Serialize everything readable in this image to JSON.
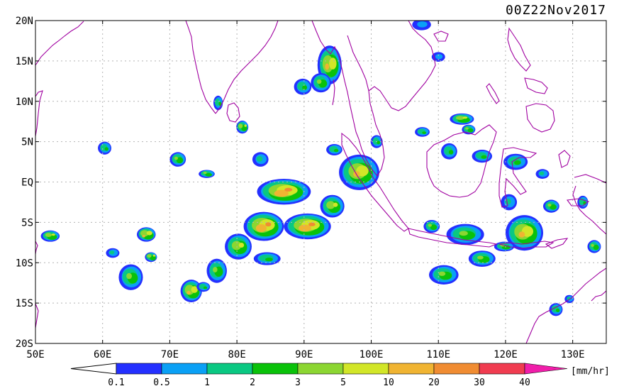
{
  "title": "00Z22Nov2017",
  "units": "[mm/hr]",
  "colors": {
    "coast": "#a000a0",
    "grid": "#b4b4b4",
    "frame": "#000000"
  },
  "lat_axis": {
    "labels": [
      "20N",
      "15N",
      "10N",
      "5N",
      "EQ",
      "5S",
      "10S",
      "15S",
      "20S"
    ],
    "values": [
      20,
      15,
      10,
      5,
      0,
      -5,
      -10,
      -15,
      -20
    ]
  },
  "lon_axis": {
    "labels": [
      "50E",
      "60E",
      "70E",
      "80E",
      "90E",
      "100E",
      "110E",
      "120E",
      "130E"
    ],
    "values": [
      50,
      60,
      70,
      80,
      90,
      100,
      110,
      120,
      130
    ]
  },
  "extent": {
    "lon": [
      50,
      135
    ],
    "lat": [
      -20,
      20
    ]
  },
  "colorbar": {
    "labels": [
      "0.1",
      "0.5",
      "1",
      "2",
      "3",
      "5",
      "10",
      "20",
      "30",
      "40"
    ],
    "colors": [
      "#2430ff",
      "#0aa0f5",
      "#0ac882",
      "#0ac20a",
      "#8cd632",
      "#d2e628",
      "#f0b432",
      "#f08c32",
      "#f03c50",
      "#f01eaa"
    ],
    "under_color": "#ffffff",
    "over_color": "#f01eaa"
  },
  "rain_cells": [
    {
      "lon": 93.8,
      "lat": 14.5,
      "rx": 1.8,
      "ry": 2.4,
      "lvl": 6
    },
    {
      "lon": 92.5,
      "lat": 12.3,
      "rx": 1.5,
      "ry": 1.2,
      "lvl": 4
    },
    {
      "lon": 89.8,
      "lat": 11.8,
      "rx": 1.3,
      "ry": 1.0,
      "lvl": 3
    },
    {
      "lon": 77.2,
      "lat": 9.8,
      "rx": 0.7,
      "ry": 0.9,
      "lvl": 3
    },
    {
      "lon": 80.8,
      "lat": 6.8,
      "rx": 0.9,
      "ry": 0.8,
      "lvl": 5
    },
    {
      "lon": 98.2,
      "lat": 1.2,
      "rx": 3.0,
      "ry": 2.2,
      "lvl": 6
    },
    {
      "lon": 87.0,
      "lat": -1.2,
      "rx": 4.0,
      "ry": 1.6,
      "lvl": 7
    },
    {
      "lon": 94.2,
      "lat": -3.0,
      "rx": 1.8,
      "ry": 1.4,
      "lvl": 5
    },
    {
      "lon": 90.5,
      "lat": -5.5,
      "rx": 3.5,
      "ry": 1.6,
      "lvl": 7
    },
    {
      "lon": 84.0,
      "lat": -5.5,
      "rx": 3.0,
      "ry": 1.8,
      "lvl": 7
    },
    {
      "lon": 80.2,
      "lat": -8.0,
      "rx": 2.0,
      "ry": 1.6,
      "lvl": 5
    },
    {
      "lon": 77.0,
      "lat": -11.0,
      "rx": 1.5,
      "ry": 1.5,
      "lvl": 4
    },
    {
      "lon": 73.2,
      "lat": -13.5,
      "rx": 1.6,
      "ry": 1.4,
      "lvl": 6
    },
    {
      "lon": 66.5,
      "lat": -6.5,
      "rx": 1.4,
      "ry": 0.9,
      "lvl": 6
    },
    {
      "lon": 64.2,
      "lat": -11.8,
      "rx": 1.8,
      "ry": 1.6,
      "lvl": 4
    },
    {
      "lon": 67.2,
      "lat": -9.3,
      "rx": 0.9,
      "ry": 0.6,
      "lvl": 5
    },
    {
      "lon": 52.2,
      "lat": -6.7,
      "rx": 1.4,
      "ry": 0.7,
      "lvl": 5
    },
    {
      "lon": 60.3,
      "lat": 4.2,
      "rx": 1.0,
      "ry": 0.8,
      "lvl": 3
    },
    {
      "lon": 71.2,
      "lat": 2.8,
      "rx": 1.2,
      "ry": 0.9,
      "lvl": 4
    },
    {
      "lon": 75.5,
      "lat": 1.0,
      "rx": 1.2,
      "ry": 0.5,
      "lvl": 4
    },
    {
      "lon": 83.5,
      "lat": 2.8,
      "rx": 1.2,
      "ry": 0.9,
      "lvl": 2
    },
    {
      "lon": 100.8,
      "lat": 5.0,
      "rx": 0.9,
      "ry": 0.8,
      "lvl": 3
    },
    {
      "lon": 107.6,
      "lat": 6.2,
      "rx": 1.1,
      "ry": 0.6,
      "lvl": 3
    },
    {
      "lon": 113.5,
      "lat": 7.8,
      "rx": 1.8,
      "ry": 0.7,
      "lvl": 5
    },
    {
      "lon": 111.6,
      "lat": 3.8,
      "rx": 1.2,
      "ry": 1.0,
      "lvl": 3
    },
    {
      "lon": 114.5,
      "lat": 6.5,
      "rx": 1.0,
      "ry": 0.6,
      "lvl": 4
    },
    {
      "lon": 116.5,
      "lat": 3.2,
      "rx": 1.5,
      "ry": 0.8,
      "lvl": 3
    },
    {
      "lon": 121.5,
      "lat": 2.5,
      "rx": 1.8,
      "ry": 1.0,
      "lvl": 3
    },
    {
      "lon": 125.5,
      "lat": 1.0,
      "rx": 1.0,
      "ry": 0.6,
      "lvl": 2
    },
    {
      "lon": 120.5,
      "lat": -2.5,
      "rx": 1.2,
      "ry": 1.0,
      "lvl": 2
    },
    {
      "lon": 126.8,
      "lat": -3.0,
      "rx": 1.2,
      "ry": 0.8,
      "lvl": 4
    },
    {
      "lon": 131.5,
      "lat": -2.5,
      "rx": 0.8,
      "ry": 0.8,
      "lvl": 3
    },
    {
      "lon": 122.8,
      "lat": -6.3,
      "rx": 2.8,
      "ry": 2.2,
      "lvl": 6
    },
    {
      "lon": 114.0,
      "lat": -6.5,
      "rx": 2.8,
      "ry": 1.3,
      "lvl": 4
    },
    {
      "lon": 109.0,
      "lat": -5.5,
      "rx": 1.2,
      "ry": 0.8,
      "lvl": 4
    },
    {
      "lon": 116.5,
      "lat": -9.5,
      "rx": 2.0,
      "ry": 1.0,
      "lvl": 4
    },
    {
      "lon": 110.8,
      "lat": -11.5,
      "rx": 2.2,
      "ry": 1.2,
      "lvl": 4
    },
    {
      "lon": 119.8,
      "lat": -8.0,
      "rx": 1.5,
      "ry": 0.6,
      "lvl": 4
    },
    {
      "lon": 127.5,
      "lat": -15.8,
      "rx": 1.0,
      "ry": 0.8,
      "lvl": 3
    },
    {
      "lon": 129.5,
      "lat": -14.5,
      "rx": 0.7,
      "ry": 0.5,
      "lvl": 2
    },
    {
      "lon": 133.2,
      "lat": -8.0,
      "rx": 1.0,
      "ry": 0.8,
      "lvl": 4
    },
    {
      "lon": 107.5,
      "lat": 19.5,
      "rx": 1.4,
      "ry": 0.7,
      "lvl": 1
    },
    {
      "lon": 110.0,
      "lat": 15.5,
      "rx": 1.0,
      "ry": 0.6,
      "lvl": 1
    },
    {
      "lon": 84.5,
      "lat": -9.5,
      "rx": 2.0,
      "ry": 0.8,
      "lvl": 3
    },
    {
      "lon": 75.0,
      "lat": -13.0,
      "rx": 1.0,
      "ry": 0.6,
      "lvl": 3
    },
    {
      "lon": 61.5,
      "lat": -8.8,
      "rx": 1.0,
      "ry": 0.6,
      "lvl": 2
    },
    {
      "lon": 94.5,
      "lat": 4.0,
      "rx": 1.2,
      "ry": 0.7,
      "lvl": 3
    }
  ]
}
